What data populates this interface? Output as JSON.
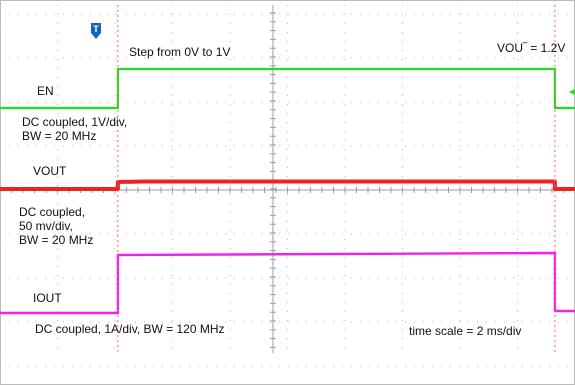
{
  "chart_data": {
    "type": "line",
    "title": "",
    "x_axis": {
      "scale_text": "time scale = 2 ms/div",
      "units": "ms",
      "range": [
        0,
        20
      ],
      "divisions": 10
    },
    "grid": true,
    "trigger_marker": "T",
    "series": [
      {
        "name": "EN",
        "color": "#22dd22",
        "coupling_text": "DC coupled, 1V/div,\nBW = 20 MHz",
        "step_text": "Step from 0V to 1V",
        "values_V": [
          {
            "t_ms": 0,
            "v": 0
          },
          {
            "t_ms": 4.1,
            "v": 0
          },
          {
            "t_ms": 4.1,
            "v": 1
          },
          {
            "t_ms": 19.3,
            "v": 1
          },
          {
            "t_ms": 19.3,
            "v": 0
          },
          {
            "t_ms": 20,
            "v": 0
          }
        ]
      },
      {
        "name": "VOUT",
        "color": "#ee2222",
        "coupling_text": "DC coupled,\n50 mv/div,\nBW = 20 MHz",
        "level_text": "VOU‾ = 1.2V",
        "values_V": [
          {
            "t_ms": 0,
            "v": 1.2
          },
          {
            "t_ms": 4.1,
            "v": 1.2
          },
          {
            "t_ms": 4.1,
            "v": 1.2064
          },
          {
            "t_ms": 5.0,
            "v": 1.2068
          },
          {
            "t_ms": 19.3,
            "v": 1.2068
          },
          {
            "t_ms": 19.3,
            "v": 1.2
          },
          {
            "t_ms": 20,
            "v": 1.2
          }
        ]
      },
      {
        "name": "IOUT",
        "color": "#ee22ee",
        "coupling_text": "DC coupled, 1A/div, BW = 120 MHz",
        "values_A": [
          {
            "t_ms": 0,
            "v": 0
          },
          {
            "t_ms": 4.1,
            "v": 0
          },
          {
            "t_ms": 4.1,
            "v": 1.45
          },
          {
            "t_ms": 19.3,
            "v": 1.5
          },
          {
            "t_ms": 19.3,
            "v": 0.05
          },
          {
            "t_ms": 20,
            "v": 0.05
          }
        ]
      }
    ]
  }
}
